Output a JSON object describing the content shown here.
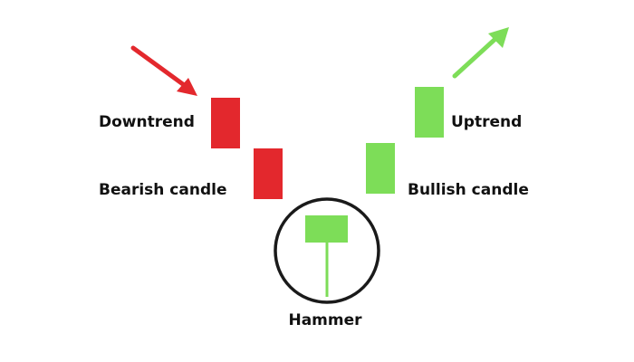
{
  "labels": {
    "downtrend": "Downtrend",
    "bearish": "Bearish candle",
    "hammer": "Hammer",
    "bullish": "Bullish candle",
    "uptrend": "Uptrend"
  },
  "colors": {
    "bearish": "#e3282d",
    "bullish": "#7ddd58",
    "circle": "#1a1a1a",
    "text": "#111111",
    "background": "#ffffff"
  }
}
